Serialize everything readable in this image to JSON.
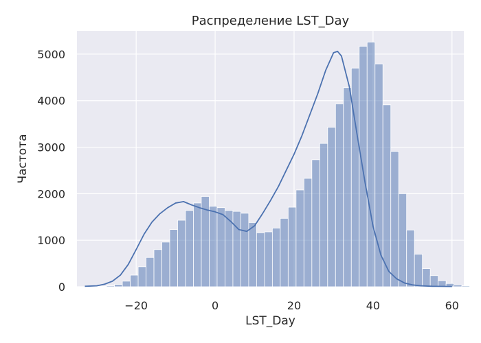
{
  "chart_data": {
    "type": "bar",
    "title": "Распределение LST_Day",
    "xlabel": "LST_Day",
    "ylabel": "Частота",
    "xlim": [
      -35,
      63
    ],
    "ylim": [
      0,
      5500
    ],
    "xticks": [
      -20,
      0,
      20,
      40,
      60
    ],
    "xtick_labels": [
      "−20",
      "0",
      "20",
      "40",
      "60"
    ],
    "yticks": [
      0,
      1000,
      2000,
      3000,
      4000,
      5000
    ],
    "ytick_labels": [
      "0",
      "1000",
      "2000",
      "3000",
      "4000",
      "5000"
    ],
    "grid": true,
    "bar_color": "#4c72b0",
    "background_color": "#eaeaf2",
    "bins": {
      "start": -31.5,
      "width": 2,
      "counts": [
        5,
        10,
        20,
        50,
        120,
        250,
        430,
        630,
        800,
        960,
        1230,
        1430,
        1640,
        1800,
        1940,
        1730,
        1700,
        1640,
        1620,
        1580,
        1380,
        1160,
        1180,
        1260,
        1470,
        1710,
        2080,
        2330,
        2730,
        3080,
        3430,
        3930,
        4280,
        4700,
        5170,
        5260,
        4790,
        3910,
        2910,
        2000,
        1220,
        700,
        390,
        240,
        130,
        70,
        40,
        20,
        10,
        5
      ]
    },
    "kde": {
      "x": [
        -33,
        -30,
        -28,
        -26,
        -24,
        -22,
        -20,
        -18,
        -16,
        -14,
        -12,
        -10,
        -8,
        -6,
        -4,
        -2,
        0,
        2,
        4,
        6,
        8,
        10,
        12,
        14,
        16,
        18,
        20,
        22,
        24,
        26,
        28,
        30,
        31,
        32,
        34,
        36,
        38,
        40,
        42,
        44,
        46,
        48,
        50,
        52,
        55,
        60
      ],
      "y": [
        10,
        20,
        55,
        120,
        250,
        480,
        800,
        1130,
        1390,
        1570,
        1700,
        1800,
        1830,
        1760,
        1700,
        1650,
        1610,
        1550,
        1400,
        1230,
        1190,
        1310,
        1570,
        1850,
        2150,
        2500,
        2850,
        3250,
        3700,
        4150,
        4650,
        5030,
        5060,
        4960,
        4300,
        3250,
        2230,
        1300,
        680,
        330,
        170,
        80,
        40,
        20,
        10,
        5
      ]
    }
  }
}
